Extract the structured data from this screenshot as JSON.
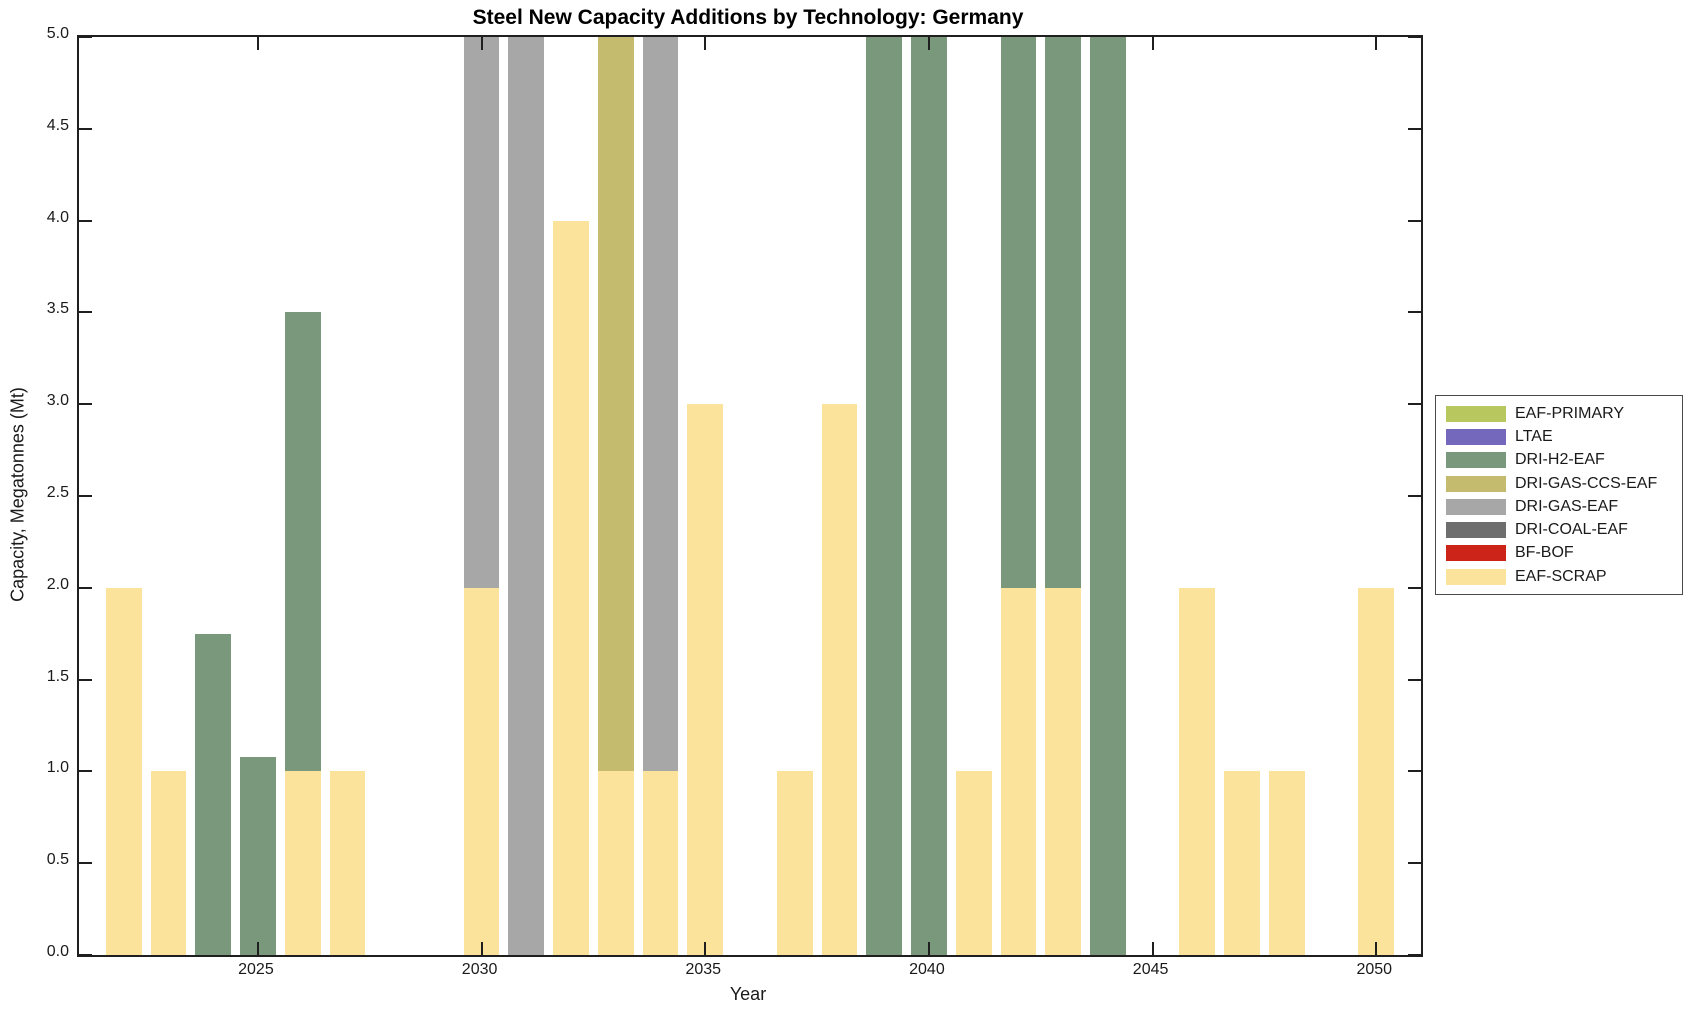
{
  "chart_data": {
    "type": "bar",
    "stacked": true,
    "title": "Steel New Capacity Additions by Technology: Germany",
    "xlabel": "Year",
    "ylabel": "Capacity, Megatonnes (Mt)",
    "xlim": [
      2021,
      2051
    ],
    "ylim": [
      0,
      5
    ],
    "x_ticks": [
      2025,
      2030,
      2035,
      2040,
      2045,
      2050
    ],
    "y_tick_labels": [
      "0.0",
      "0.5",
      "1.0",
      "1.5",
      "2.0",
      "2.5",
      "3.0",
      "3.5",
      "4.0",
      "4.5",
      "5.0"
    ],
    "bar_width_fraction": 0.8,
    "grid": false,
    "legend_position": "right-outside",
    "legend": [
      {
        "name": "EAF-PRIMARY",
        "color": "#b9c75f"
      },
      {
        "name": "LTAE",
        "color": "#7468bc"
      },
      {
        "name": "DRI-H2-EAF",
        "color": "#7a987b"
      },
      {
        "name": "DRI-GAS-CCS-EAF",
        "color": "#c5bb6e"
      },
      {
        "name": "DRI-GAS-EAF",
        "color": "#a7a7a7"
      },
      {
        "name": "DRI-COAL-EAF",
        "color": "#6e6e6e"
      },
      {
        "name": "BF-BOF",
        "color": "#cc2418"
      },
      {
        "name": "EAF-SCRAP",
        "color": "#fce39b"
      }
    ],
    "bars": [
      {
        "year": 2022,
        "segments": [
          {
            "series": "EAF-SCRAP",
            "value": 2.0
          }
        ]
      },
      {
        "year": 2023,
        "segments": [
          {
            "series": "EAF-SCRAP",
            "value": 1.0
          }
        ]
      },
      {
        "year": 2024,
        "segments": [
          {
            "series": "DRI-H2-EAF",
            "value": 1.75
          }
        ]
      },
      {
        "year": 2025,
        "segments": [
          {
            "series": "DRI-H2-EAF",
            "value": 1.08
          }
        ]
      },
      {
        "year": 2026,
        "segments": [
          {
            "series": "EAF-SCRAP",
            "value": 1.0
          },
          {
            "series": "DRI-H2-EAF",
            "value": 2.5
          }
        ]
      },
      {
        "year": 2027,
        "segments": [
          {
            "series": "EAF-SCRAP",
            "value": 1.0
          }
        ]
      },
      {
        "year": 2030,
        "segments": [
          {
            "series": "EAF-SCRAP",
            "value": 2.0
          },
          {
            "series": "DRI-GAS-EAF",
            "value": 3.0
          }
        ]
      },
      {
        "year": 2031,
        "segments": [
          {
            "series": "DRI-GAS-EAF",
            "value": 5.0
          }
        ]
      },
      {
        "year": 2032,
        "segments": [
          {
            "series": "EAF-SCRAP",
            "value": 4.0
          }
        ]
      },
      {
        "year": 2033,
        "segments": [
          {
            "series": "EAF-SCRAP",
            "value": 1.0
          },
          {
            "series": "DRI-GAS-CCS-EAF",
            "value": 4.0
          }
        ]
      },
      {
        "year": 2034,
        "segments": [
          {
            "series": "EAF-SCRAP",
            "value": 1.0
          },
          {
            "series": "DRI-GAS-EAF",
            "value": 4.0
          }
        ]
      },
      {
        "year": 2035,
        "segments": [
          {
            "series": "EAF-SCRAP",
            "value": 3.0
          }
        ]
      },
      {
        "year": 2037,
        "segments": [
          {
            "series": "EAF-SCRAP",
            "value": 1.0
          }
        ]
      },
      {
        "year": 2038,
        "segments": [
          {
            "series": "EAF-SCRAP",
            "value": 3.0
          }
        ]
      },
      {
        "year": 2039,
        "segments": [
          {
            "series": "DRI-H2-EAF",
            "value": 5.0
          }
        ]
      },
      {
        "year": 2040,
        "segments": [
          {
            "series": "DRI-H2-EAF",
            "value": 5.0
          }
        ]
      },
      {
        "year": 2041,
        "segments": [
          {
            "series": "EAF-SCRAP",
            "value": 1.0
          }
        ]
      },
      {
        "year": 2042,
        "segments": [
          {
            "series": "EAF-SCRAP",
            "value": 2.0
          },
          {
            "series": "DRI-H2-EAF",
            "value": 3.0
          }
        ]
      },
      {
        "year": 2043,
        "segments": [
          {
            "series": "EAF-SCRAP",
            "value": 2.0
          },
          {
            "series": "DRI-H2-EAF",
            "value": 3.0
          }
        ]
      },
      {
        "year": 2044,
        "segments": [
          {
            "series": "DRI-H2-EAF",
            "value": 5.0
          }
        ]
      },
      {
        "year": 2046,
        "segments": [
          {
            "series": "EAF-SCRAP",
            "value": 2.0
          }
        ]
      },
      {
        "year": 2047,
        "segments": [
          {
            "series": "EAF-SCRAP",
            "value": 1.0
          }
        ]
      },
      {
        "year": 2048,
        "segments": [
          {
            "series": "EAF-SCRAP",
            "value": 1.0
          }
        ]
      },
      {
        "year": 2050,
        "segments": [
          {
            "series": "EAF-SCRAP",
            "value": 2.0
          }
        ]
      }
    ]
  }
}
